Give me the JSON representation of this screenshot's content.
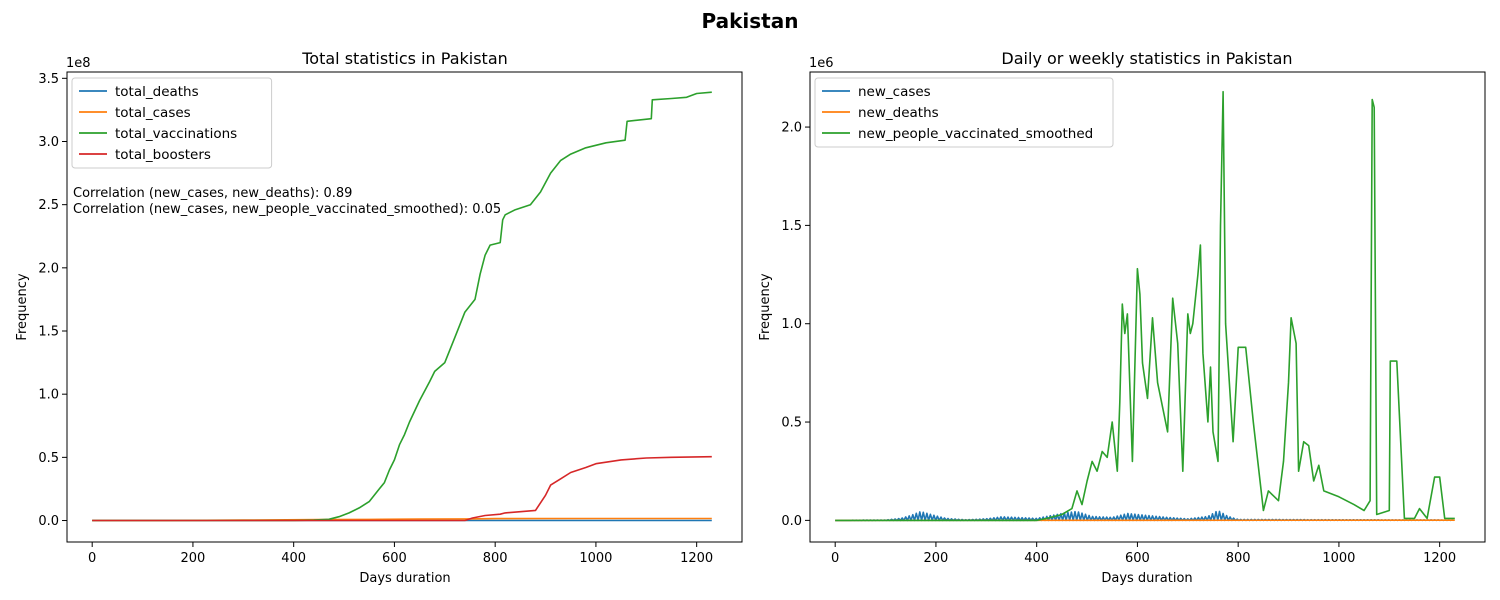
{
  "figure": {
    "suptitle": "Pakistan"
  },
  "chart_data": [
    {
      "type": "line",
      "title": "Total statistics in Pakistan",
      "xlabel": "Days duration",
      "ylabel": "Frequency",
      "y_offset_label": "1e8",
      "y_scale": 100000000,
      "xlim": [
        -50,
        1290
      ],
      "ylim": [
        -0.17,
        3.55
      ],
      "xticks": [
        0,
        200,
        400,
        600,
        800,
        1000,
        1200
      ],
      "xtick_labels": [
        "0",
        "200",
        "400",
        "600",
        "800",
        "1000",
        "1200"
      ],
      "yticks": [
        0.0,
        0.5,
        1.0,
        1.5,
        2.0,
        2.5,
        3.0,
        3.5
      ],
      "ytick_labels": [
        "0.0",
        "0.5",
        "1.0",
        "1.5",
        "2.0",
        "2.5",
        "3.0",
        "3.5"
      ],
      "grid": false,
      "legend_position": "top-left",
      "annotations": [
        "Correlation (new_cases, new_deaths): 0.89",
        "Correlation (new_cases, new_people_vaccinated_smoothed): 0.05"
      ],
      "series": [
        {
          "name": "total_deaths",
          "color": "#1f77b4",
          "points": [
            [
              0,
              0
            ],
            [
              200,
              0.0001
            ],
            [
              400,
              0.0002
            ],
            [
              600,
              0.0002
            ],
            [
              800,
              0.0003
            ],
            [
              1000,
              0.0003
            ],
            [
              1230,
              0.0003
            ]
          ]
        },
        {
          "name": "total_cases",
          "color": "#ff7f0e",
          "points": [
            [
              0,
              0
            ],
            [
              150,
              0.0005
            ],
            [
              300,
              0.003
            ],
            [
              450,
              0.007
            ],
            [
              550,
              0.009
            ],
            [
              650,
              0.011
            ],
            [
              750,
              0.013
            ],
            [
              800,
              0.015
            ],
            [
              1000,
              0.0157
            ],
            [
              1230,
              0.0158
            ]
          ]
        },
        {
          "name": "total_vaccinations",
          "color": "#2ca02c",
          "points": [
            [
              0,
              0
            ],
            [
              400,
              0
            ],
            [
              440,
              0.003
            ],
            [
              470,
              0.01
            ],
            [
              490,
              0.03
            ],
            [
              510,
              0.06
            ],
            [
              530,
              0.1
            ],
            [
              550,
              0.15
            ],
            [
              570,
              0.25
            ],
            [
              580,
              0.3
            ],
            [
              590,
              0.4
            ],
            [
              600,
              0.48
            ],
            [
              610,
              0.6
            ],
            [
              620,
              0.68
            ],
            [
              630,
              0.78
            ],
            [
              650,
              0.95
            ],
            [
              670,
              1.1
            ],
            [
              680,
              1.18
            ],
            [
              700,
              1.25
            ],
            [
              720,
              1.45
            ],
            [
              740,
              1.65
            ],
            [
              760,
              1.75
            ],
            [
              770,
              1.95
            ],
            [
              780,
              2.1
            ],
            [
              790,
              2.18
            ],
            [
              810,
              2.2
            ],
            [
              815,
              2.38
            ],
            [
              820,
              2.42
            ],
            [
              840,
              2.46
            ],
            [
              870,
              2.5
            ],
            [
              890,
              2.6
            ],
            [
              910,
              2.75
            ],
            [
              930,
              2.85
            ],
            [
              950,
              2.9
            ],
            [
              980,
              2.95
            ],
            [
              1020,
              2.99
            ],
            [
              1058,
              3.01
            ],
            [
              1062,
              3.16
            ],
            [
              1110,
              3.18
            ],
            [
              1112,
              3.33
            ],
            [
              1150,
              3.34
            ],
            [
              1180,
              3.35
            ],
            [
              1200,
              3.38
            ],
            [
              1230,
              3.39
            ]
          ]
        },
        {
          "name": "total_boosters",
          "color": "#d62728",
          "points": [
            [
              0,
              0
            ],
            [
              740,
              0
            ],
            [
              755,
              0.02
            ],
            [
              780,
              0.04
            ],
            [
              810,
              0.05
            ],
            [
              820,
              0.06
            ],
            [
              850,
              0.07
            ],
            [
              880,
              0.08
            ],
            [
              900,
              0.2
            ],
            [
              910,
              0.28
            ],
            [
              930,
              0.33
            ],
            [
              950,
              0.38
            ],
            [
              980,
              0.42
            ],
            [
              1000,
              0.45
            ],
            [
              1050,
              0.48
            ],
            [
              1100,
              0.495
            ],
            [
              1150,
              0.5
            ],
            [
              1230,
              0.505
            ]
          ]
        }
      ]
    },
    {
      "type": "line",
      "title": "Daily or weekly statistics in Pakistan",
      "xlabel": "Days duration",
      "ylabel": "Frequency",
      "y_offset_label": "1e6",
      "y_scale": 1000000,
      "xlim": [
        -50,
        1290
      ],
      "ylim": [
        -0.11,
        2.28
      ],
      "xticks": [
        0,
        200,
        400,
        600,
        800,
        1000,
        1200
      ],
      "xtick_labels": [
        "0",
        "200",
        "400",
        "600",
        "800",
        "1000",
        "1200"
      ],
      "yticks": [
        0.0,
        0.5,
        1.0,
        1.5,
        2.0
      ],
      "ytick_labels": [
        "0.0",
        "0.5",
        "1.0",
        "1.5",
        "2.0"
      ],
      "grid": false,
      "legend_position": "top-left",
      "series": [
        {
          "name": "new_cases",
          "color": "#1f77b4",
          "weekly_spikes": true,
          "points": [
            [
              0,
              0
            ],
            [
              100,
              0.002
            ],
            [
              130,
              0.01
            ],
            [
              150,
              0.025
            ],
            [
              170,
              0.045
            ],
            [
              190,
              0.03
            ],
            [
              220,
              0.01
            ],
            [
              260,
              0.003
            ],
            [
              300,
              0.008
            ],
            [
              330,
              0.018
            ],
            [
              360,
              0.015
            ],
            [
              400,
              0.01
            ],
            [
              430,
              0.025
            ],
            [
              460,
              0.04
            ],
            [
              480,
              0.045
            ],
            [
              510,
              0.02
            ],
            [
              550,
              0.015
            ],
            [
              580,
              0.035
            ],
            [
              600,
              0.03
            ],
            [
              620,
              0.025
            ],
            [
              660,
              0.015
            ],
            [
              700,
              0.008
            ],
            [
              740,
              0.02
            ],
            [
              760,
              0.05
            ],
            [
              780,
              0.02
            ],
            [
              800,
              0.005
            ],
            [
              1000,
              0.003
            ],
            [
              1230,
              0.002
            ]
          ]
        },
        {
          "name": "new_deaths",
          "color": "#ff7f0e",
          "points": [
            [
              0,
              0
            ],
            [
              1230,
              0.001
            ]
          ]
        },
        {
          "name": "new_people_vaccinated_smoothed",
          "color": "#2ca02c",
          "points": [
            [
              0,
              0
            ],
            [
              400,
              0.0
            ],
            [
              420,
              0.01
            ],
            [
              450,
              0.03
            ],
            [
              470,
              0.06
            ],
            [
              480,
              0.15
            ],
            [
              490,
              0.08
            ],
            [
              500,
              0.2
            ],
            [
              510,
              0.3
            ],
            [
              520,
              0.25
            ],
            [
              530,
              0.35
            ],
            [
              540,
              0.32
            ],
            [
              550,
              0.5
            ],
            [
              560,
              0.25
            ],
            [
              565,
              0.6
            ],
            [
              570,
              1.1
            ],
            [
              575,
              0.95
            ],
            [
              580,
              1.05
            ],
            [
              590,
              0.3
            ],
            [
              600,
              1.28
            ],
            [
              605,
              1.15
            ],
            [
              610,
              0.8
            ],
            [
              620,
              0.62
            ],
            [
              630,
              1.03
            ],
            [
              640,
              0.7
            ],
            [
              660,
              0.45
            ],
            [
              670,
              1.13
            ],
            [
              680,
              0.9
            ],
            [
              690,
              0.25
            ],
            [
              700,
              1.05
            ],
            [
              705,
              0.95
            ],
            [
              710,
              1.0
            ],
            [
              720,
              1.25
            ],
            [
              725,
              1.4
            ],
            [
              730,
              0.85
            ],
            [
              740,
              0.5
            ],
            [
              745,
              0.78
            ],
            [
              750,
              0.45
            ],
            [
              760,
              0.3
            ],
            [
              765,
              1.5
            ],
            [
              770,
              2.18
            ],
            [
              775,
              1.0
            ],
            [
              780,
              0.8
            ],
            [
              790,
              0.4
            ],
            [
              800,
              0.88
            ],
            [
              815,
              0.88
            ],
            [
              830,
              0.5
            ],
            [
              850,
              0.05
            ],
            [
              860,
              0.15
            ],
            [
              880,
              0.1
            ],
            [
              890,
              0.3
            ],
            [
              900,
              0.7
            ],
            [
              905,
              1.03
            ],
            [
              915,
              0.9
            ],
            [
              920,
              0.25
            ],
            [
              930,
              0.4
            ],
            [
              940,
              0.38
            ],
            [
              950,
              0.2
            ],
            [
              960,
              0.28
            ],
            [
              970,
              0.15
            ],
            [
              1000,
              0.12
            ],
            [
              1030,
              0.08
            ],
            [
              1050,
              0.05
            ],
            [
              1062,
              0.1
            ],
            [
              1066,
              2.14
            ],
            [
              1070,
              2.1
            ],
            [
              1075,
              0.03
            ],
            [
              1100,
              0.05
            ],
            [
              1102,
              0.81
            ],
            [
              1115,
              0.81
            ],
            [
              1130,
              0.01
            ],
            [
              1150,
              0.01
            ],
            [
              1160,
              0.06
            ],
            [
              1175,
              0.01
            ],
            [
              1190,
              0.22
            ],
            [
              1200,
              0.22
            ],
            [
              1210,
              0.01
            ],
            [
              1230,
              0.01
            ]
          ]
        }
      ]
    }
  ]
}
